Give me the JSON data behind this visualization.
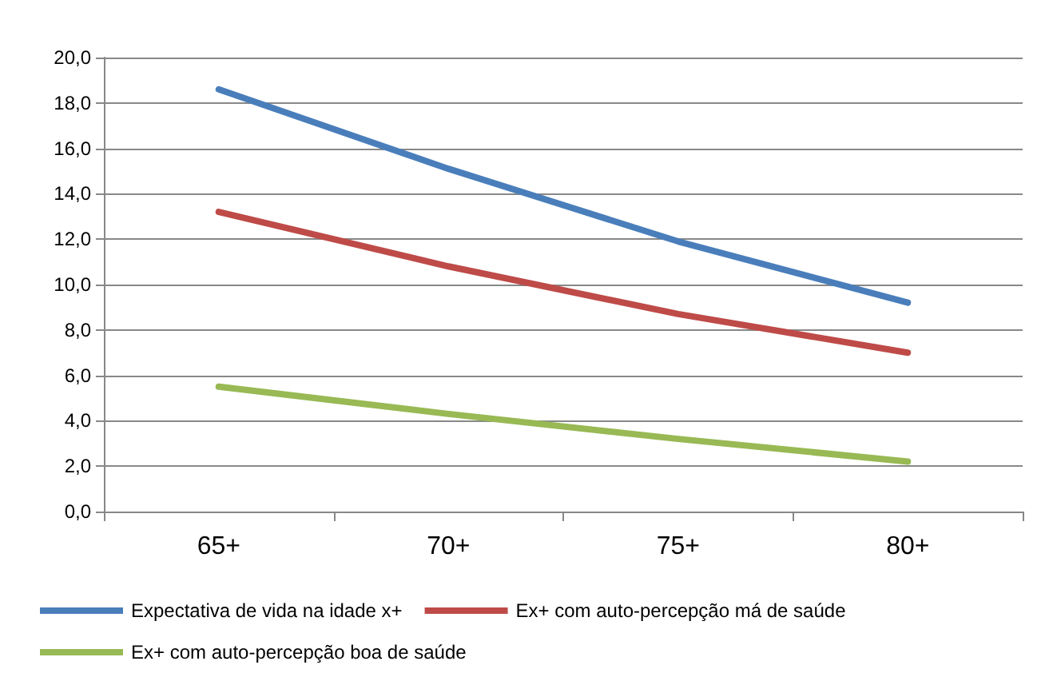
{
  "chart_data": {
    "type": "line",
    "categories": [
      "65+",
      "70+",
      "75+",
      "80+"
    ],
    "series": [
      {
        "name": "Expectativa de vida na idade x+",
        "color": "#4a7ebb",
        "values": [
          18.6,
          15.1,
          11.9,
          9.2
        ]
      },
      {
        "name": "Ex+ com auto-percepção má de saúde",
        "color": "#be4b48",
        "values": [
          13.2,
          10.8,
          8.7,
          7.0
        ]
      },
      {
        "name": "Ex+ com auto-percepção boa de saúde",
        "color": "#98b954",
        "values": [
          5.5,
          4.3,
          3.2,
          2.2
        ]
      }
    ],
    "ylim": [
      0,
      20
    ],
    "yticks": [
      {
        "value": 0,
        "label": "0,0"
      },
      {
        "value": 2,
        "label": "2,0"
      },
      {
        "value": 4,
        "label": "4,0"
      },
      {
        "value": 6,
        "label": "6,0"
      },
      {
        "value": 8,
        "label": "8,0"
      },
      {
        "value": 10,
        "label": "10,0"
      },
      {
        "value": 12,
        "label": "12,0"
      },
      {
        "value": 14,
        "label": "14,0"
      },
      {
        "value": 16,
        "label": "16,0"
      },
      {
        "value": 18,
        "label": "18,0"
      },
      {
        "value": 20,
        "label": "20,0"
      }
    ],
    "grid": "y",
    "legend": "bottom",
    "marker": "none",
    "line_style": "solid"
  }
}
